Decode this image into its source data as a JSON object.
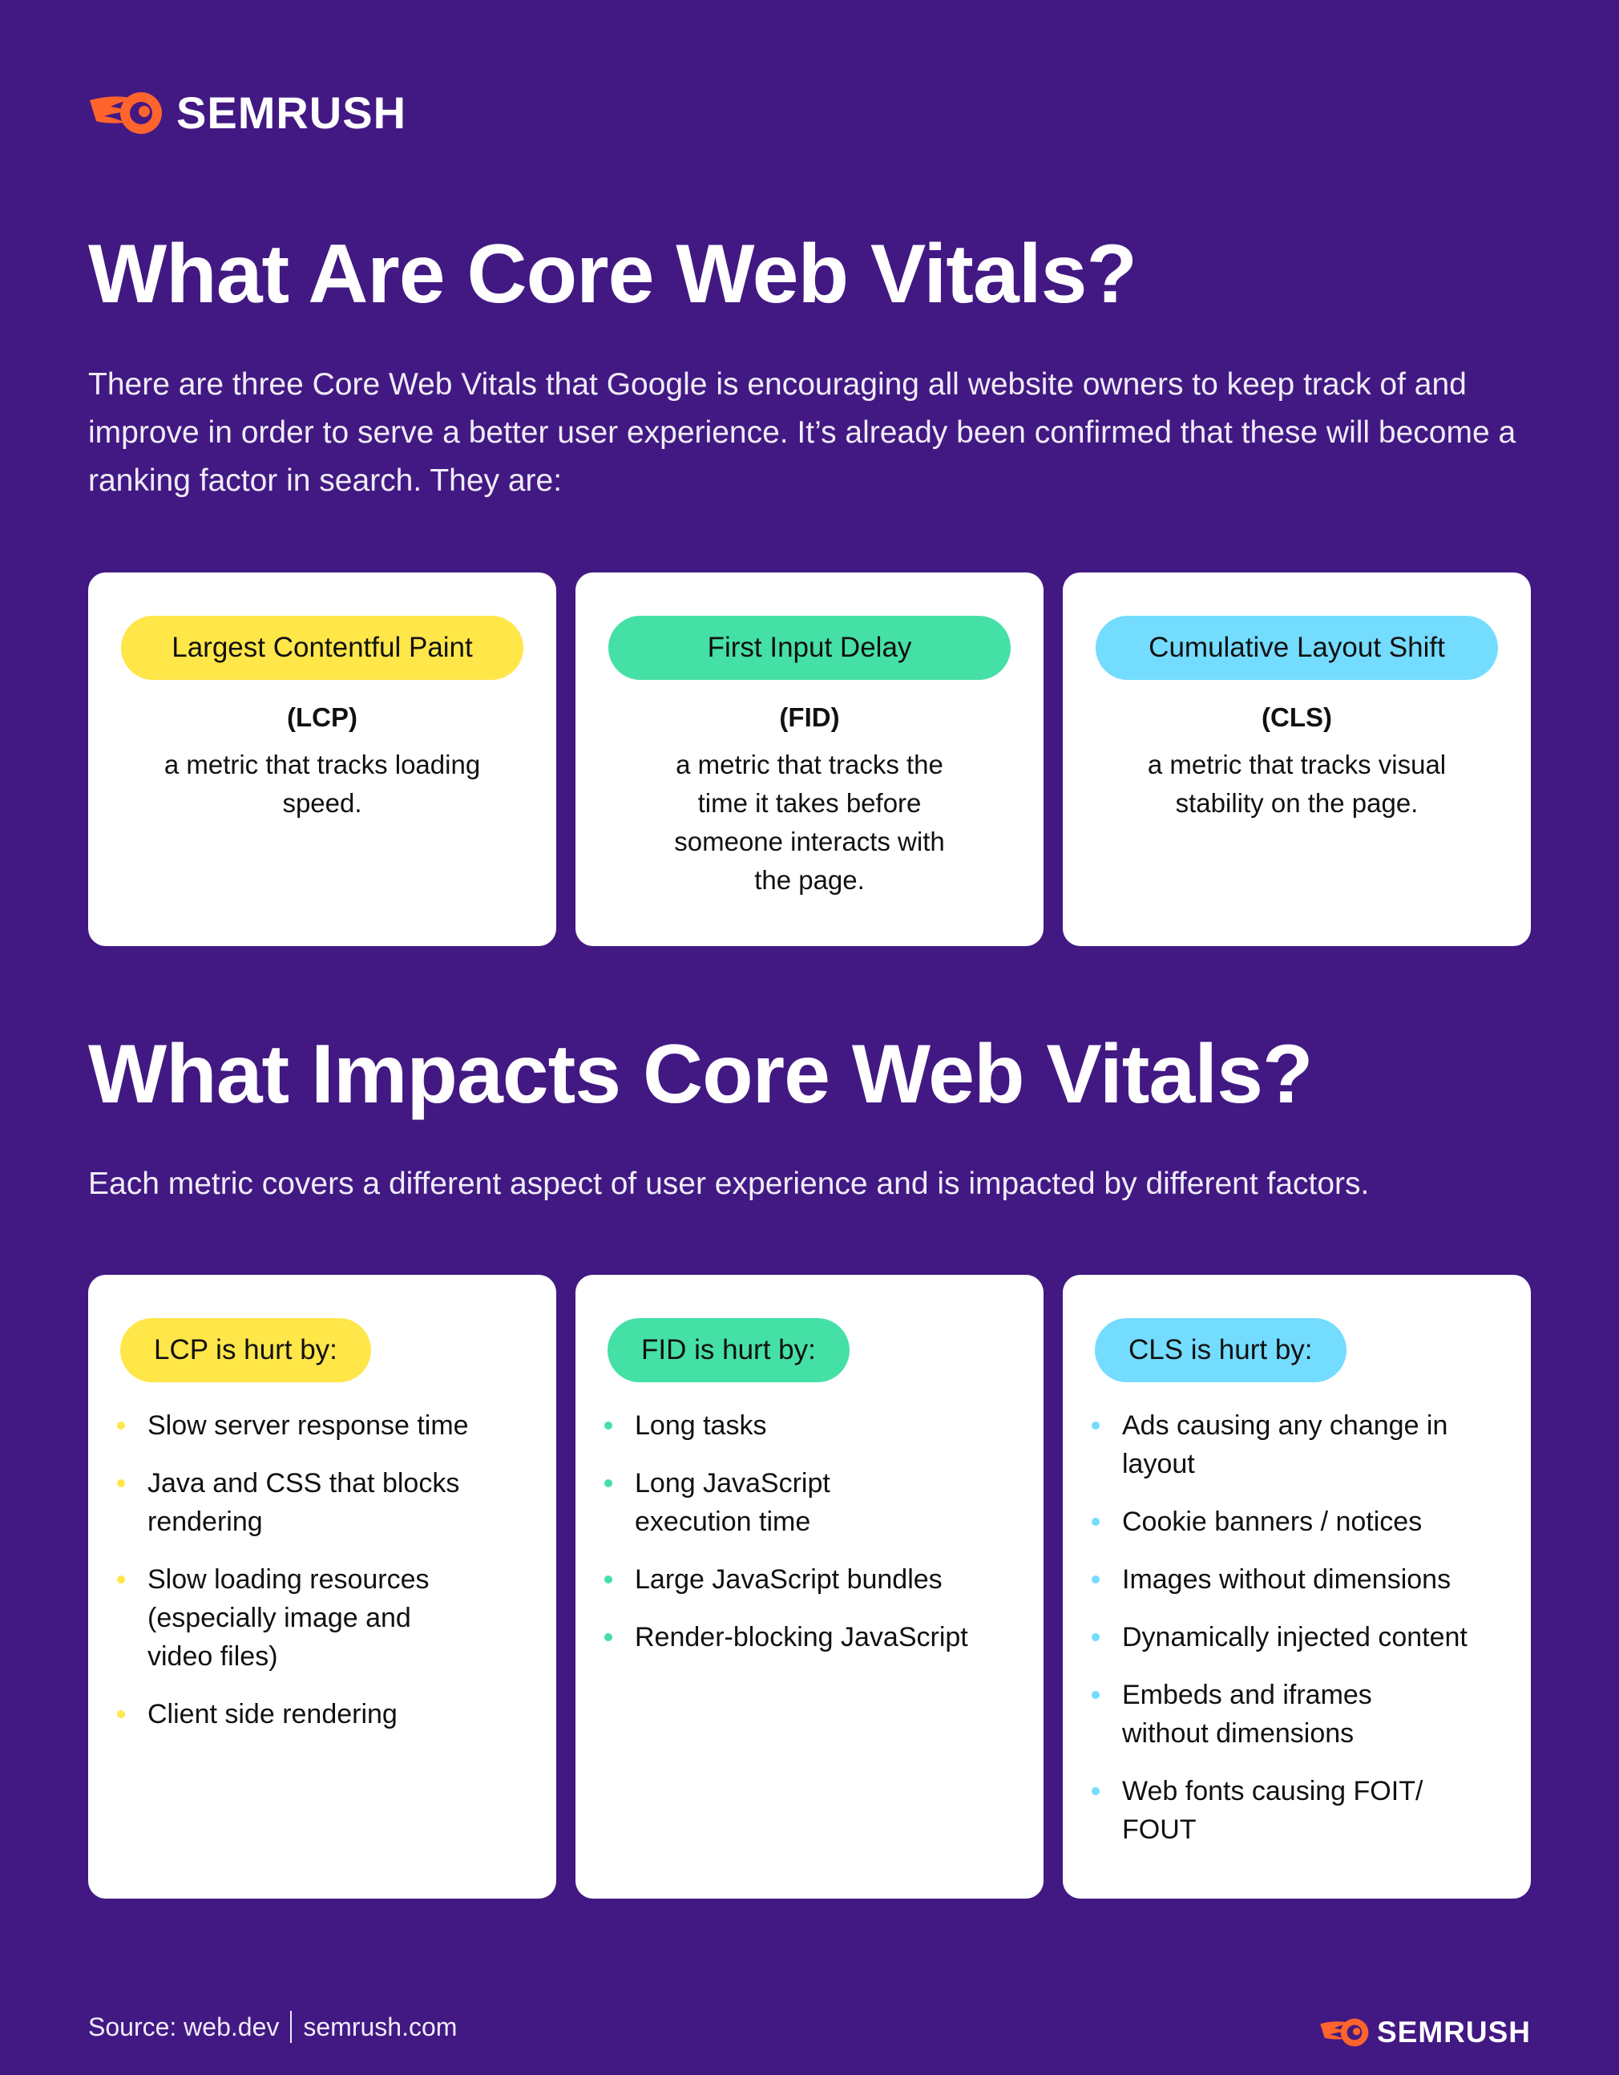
{
  "brand": {
    "name": "SEMRUSH",
    "accent": "#ff642d",
    "background": "#421983"
  },
  "section1": {
    "title": "What Are Core Web Vitals?",
    "intro": "There are three Core Web Vitals that Google is encouraging all website owners to keep track of and improve in order to serve a better user experience. It’s already been confirmed that these will become a ranking factor in search. They are:",
    "cards": [
      {
        "name": "Largest Contentful Paint",
        "abbr": "(LCP)",
        "description": "a metric that tracks loading speed.",
        "color": "#ffe649"
      },
      {
        "name": "First Input Delay",
        "abbr": "(FID)",
        "description": "a metric that tracks the time it takes before someone interacts with the page.",
        "color": "#45e0a6"
      },
      {
        "name": "Cumulative Layout Shift",
        "abbr": "(CLS)",
        "description": "a metric that tracks visual stability on the page.",
        "color": "#73dcff"
      }
    ]
  },
  "section2": {
    "title": "What Impacts Core Web Vitals?",
    "intro": "Each metric covers a different aspect of user experience and is impacted by different factors.",
    "cards": [
      {
        "label": "LCP is hurt by:",
        "items": [
          "Slow server response time",
          "Java and CSS that blocks rendering",
          "Slow loading resources (especially image and video files)",
          "Client side rendering"
        ]
      },
      {
        "label": "FID is hurt by:",
        "items": [
          "Long tasks",
          "Long JavaScript execution time",
          "Large JavaScript bundles",
          "Render-blocking JavaScript"
        ]
      },
      {
        "label": "CLS is hurt by:",
        "items": [
          "Ads causing any change in layout",
          "Cookie banners / notices",
          "Images without dimensions",
          "Dynamically injected content",
          "Embeds and iframes without dimensions",
          "Web fonts causing FOIT/ FOUT"
        ]
      }
    ]
  },
  "footer": {
    "source": "Source: web.dev",
    "site": "semrush.com"
  }
}
